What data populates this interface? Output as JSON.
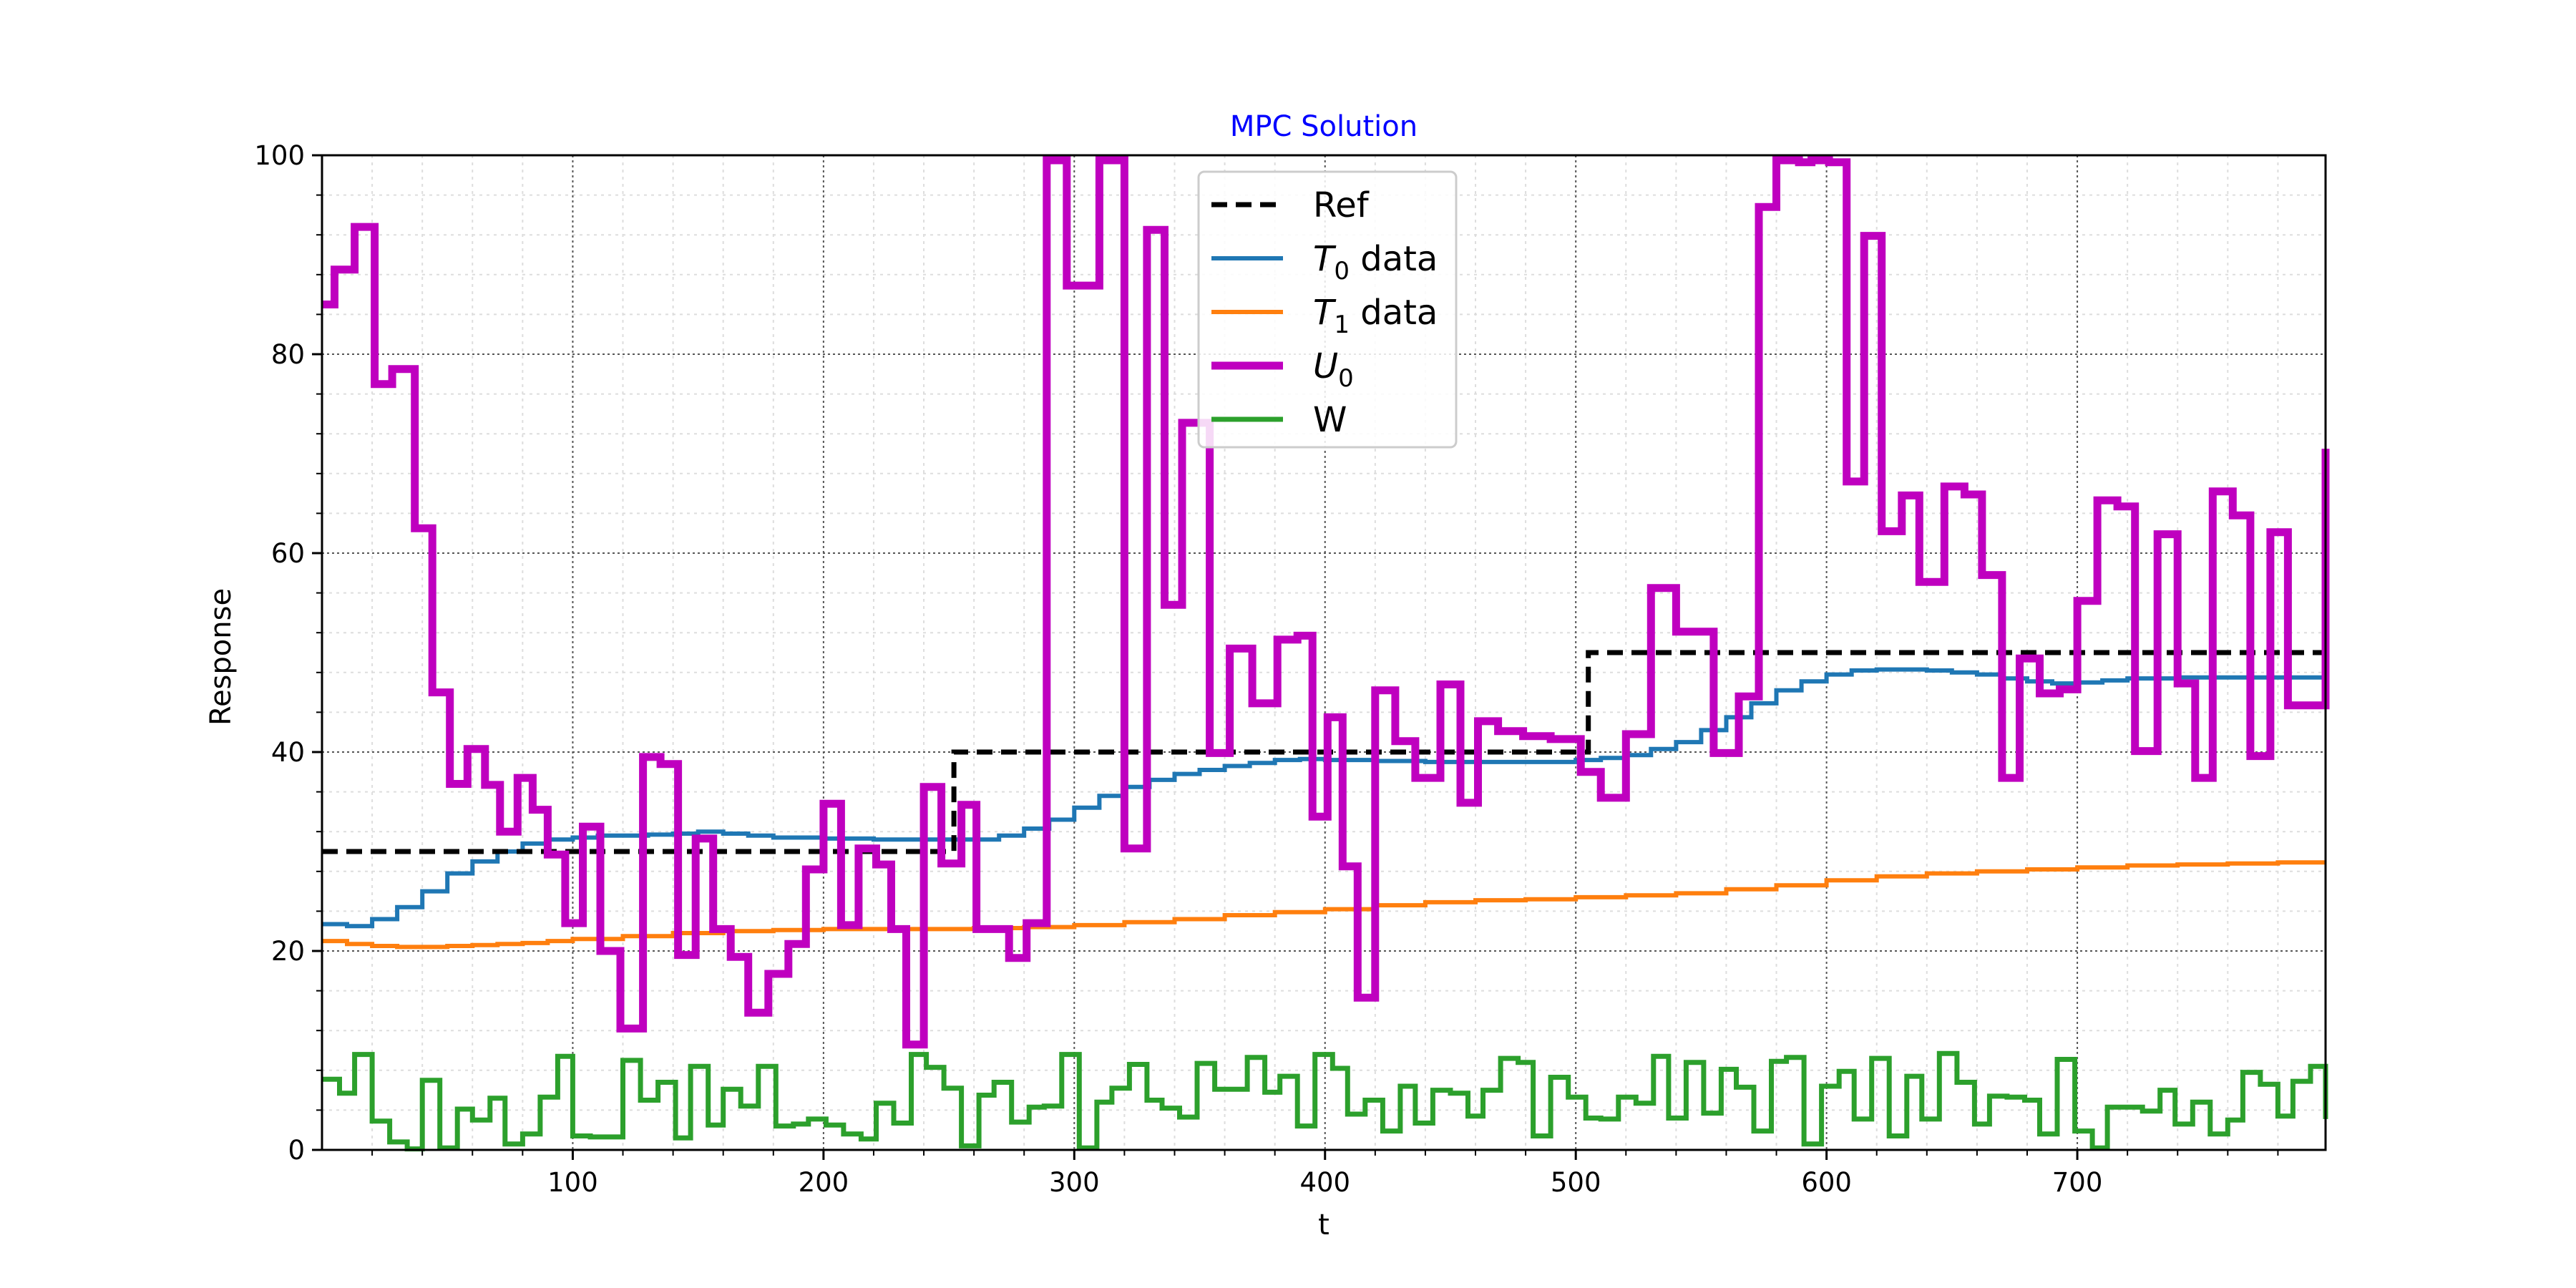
{
  "chart_data": {
    "type": "line",
    "title": "MPC Solution",
    "xlabel": "t",
    "ylabel": "Response",
    "xlim": [
      0,
      799
    ],
    "ylim": [
      0,
      100
    ],
    "xticks": [
      100,
      200,
      300,
      400,
      500,
      600,
      700
    ],
    "yticks": [
      0,
      20,
      40,
      60,
      80,
      100
    ],
    "grid": true,
    "minor_grid": true,
    "legend_position": "top-center",
    "legend": [
      {
        "key": "ref",
        "main": "Ref",
        "sub": ""
      },
      {
        "key": "t0",
        "main": "T",
        "sub": "0",
        "suffix": " data"
      },
      {
        "key": "t1",
        "main": "T",
        "sub": "1",
        "suffix": " data"
      },
      {
        "key": "u0",
        "main": "U",
        "sub": "0",
        "suffix": ""
      },
      {
        "key": "w",
        "main": "W",
        "sub": "",
        "suffix": ""
      }
    ],
    "series": [
      {
        "key": "ref",
        "name": "Ref",
        "color": "#000000",
        "dashed": true,
        "step": true,
        "x": [
          0,
          252,
          252,
          505,
          505,
          799
        ],
        "y": [
          30,
          30,
          40,
          40,
          50,
          50
        ]
      },
      {
        "key": "t0",
        "name": "T0 data",
        "color": "#1f77b4",
        "dashed": false,
        "step": true,
        "x": [
          0,
          10,
          20,
          30,
          40,
          50,
          60,
          70,
          80,
          90,
          100,
          110,
          120,
          130,
          140,
          150,
          160,
          170,
          180,
          190,
          200,
          210,
          220,
          230,
          240,
          250,
          260,
          270,
          280,
          290,
          300,
          310,
          320,
          330,
          340,
          350,
          360,
          370,
          380,
          390,
          400,
          420,
          440,
          460,
          480,
          500,
          510,
          520,
          530,
          540,
          550,
          560,
          570,
          580,
          590,
          600,
          610,
          620,
          630,
          640,
          650,
          660,
          670,
          680,
          690,
          700,
          710,
          720,
          740,
          760,
          780,
          799
        ],
        "y": [
          22.7,
          22.5,
          23.2,
          24.4,
          26.0,
          27.8,
          29.0,
          30.0,
          30.8,
          31.2,
          31.4,
          31.6,
          31.6,
          31.7,
          31.8,
          32.0,
          31.8,
          31.6,
          31.4,
          31.4,
          31.3,
          31.3,
          31.2,
          31.2,
          31.2,
          31.2,
          31.2,
          31.6,
          32.3,
          33.2,
          34.4,
          35.6,
          36.5,
          37.2,
          37.8,
          38.2,
          38.6,
          38.9,
          39.2,
          39.3,
          39.2,
          39.1,
          39.0,
          39.0,
          39.0,
          39.2,
          39.4,
          39.7,
          40.3,
          41.0,
          42.2,
          43.5,
          44.9,
          46.2,
          47.1,
          47.8,
          48.2,
          48.3,
          48.3,
          48.2,
          48.0,
          47.8,
          47.4,
          47.1,
          46.9,
          47.0,
          47.2,
          47.4,
          47.5,
          47.5,
          47.5,
          47.5
        ]
      },
      {
        "key": "t1",
        "name": "T1 data",
        "color": "#ff7f0e",
        "dashed": false,
        "step": true,
        "x": [
          0,
          10,
          20,
          30,
          40,
          50,
          60,
          70,
          80,
          90,
          100,
          120,
          140,
          160,
          180,
          200,
          220,
          240,
          260,
          280,
          300,
          320,
          340,
          360,
          380,
          400,
          420,
          440,
          460,
          480,
          500,
          520,
          540,
          560,
          580,
          600,
          620,
          640,
          660,
          680,
          700,
          720,
          740,
          760,
          780,
          799
        ],
        "y": [
          21.0,
          20.7,
          20.5,
          20.4,
          20.4,
          20.5,
          20.6,
          20.7,
          20.8,
          21.0,
          21.2,
          21.5,
          21.8,
          22.0,
          22.1,
          22.2,
          22.2,
          22.2,
          22.3,
          22.4,
          22.6,
          22.9,
          23.2,
          23.6,
          23.9,
          24.2,
          24.6,
          24.9,
          25.1,
          25.2,
          25.4,
          25.6,
          25.8,
          26.2,
          26.6,
          27.1,
          27.5,
          27.8,
          28.0,
          28.2,
          28.4,
          28.6,
          28.7,
          28.8,
          28.9,
          28.9
        ]
      },
      {
        "key": "u0",
        "name": "U0",
        "color": "#bf00bf",
        "dashed": false,
        "step": true,
        "x": [
          0,
          5,
          13,
          21,
          28,
          37,
          44,
          51,
          58,
          65,
          71,
          78,
          84,
          90,
          97,
          104,
          111,
          119,
          128,
          135,
          142,
          149,
          156,
          163,
          170,
          178,
          186,
          193,
          200,
          207,
          214,
          221,
          227,
          233,
          240,
          247,
          255,
          261,
          268,
          274,
          281,
          289,
          297,
          310,
          320,
          329,
          336,
          343,
          354,
          362,
          371,
          381,
          389,
          395,
          401,
          407,
          413,
          420,
          428,
          436,
          446,
          454,
          461,
          469,
          479,
          490,
          502,
          510,
          520,
          530,
          540,
          555,
          565,
          573,
          580,
          589,
          594,
          601,
          608,
          615,
          622,
          630,
          637,
          647,
          655,
          662,
          670,
          677,
          685,
          693,
          700,
          708,
          716,
          723,
          732,
          740,
          747,
          754,
          762,
          769,
          777,
          784,
          790,
          799
        ],
        "y": [
          85,
          88.5,
          92.8,
          77,
          78.5,
          62.5,
          46,
          36.8,
          40.3,
          36.7,
          32,
          37.4,
          34.2,
          29.7,
          22.8,
          32.5,
          20,
          12.2,
          39.5,
          38.8,
          19.6,
          31.3,
          22.2,
          19.4,
          13.8,
          17.7,
          20.7,
          28.2,
          34.8,
          22.6,
          30.3,
          28.7,
          22.2,
          10.6,
          36.5,
          28.8,
          34.7,
          22.2,
          22.2,
          19.3,
          22.8,
          99.5,
          86.9,
          99.5,
          30.3,
          92.5,
          54.8,
          73.1,
          39.9,
          50.4,
          44.9,
          51.3,
          51.7,
          33.5,
          43.5,
          28.5,
          15.3,
          46.2,
          41.1,
          37.4,
          46.8,
          34.9,
          43.1,
          42.1,
          41.6,
          41.3,
          38,
          35.4,
          41.8,
          56.5,
          52.1,
          39.9,
          45.6,
          94.8,
          99.5,
          99.3,
          99.5,
          99.3,
          67.2,
          91.9,
          62.2,
          65.8,
          57.1,
          66.7,
          65.9,
          57.8,
          37.4,
          49.4,
          45.9,
          46.3,
          55.2,
          65.3,
          64.7,
          40.1,
          61.9,
          46.9,
          37.4,
          66.2,
          63.8,
          39.6,
          62.1,
          44.7,
          44.7,
          70.5
        ]
      },
      {
        "key": "w",
        "name": "W",
        "color": "#2ca02c",
        "dashed": false,
        "step": true,
        "x": [
          0,
          7,
          13,
          20,
          27,
          34,
          40,
          47,
          54,
          60,
          67,
          73,
          80,
          87,
          94,
          100,
          107,
          114,
          120,
          127,
          134,
          141,
          147,
          154,
          160,
          167,
          174,
          181,
          188,
          194,
          201,
          208,
          215,
          221,
          228,
          235,
          241,
          248,
          255,
          262,
          268,
          275,
          282,
          288,
          295,
          302,
          309,
          315,
          322,
          329,
          335,
          342,
          349,
          356,
          362,
          369,
          376,
          382,
          389,
          396,
          403,
          409,
          416,
          423,
          430,
          436,
          443,
          450,
          457,
          463,
          470,
          477,
          483,
          490,
          497,
          504,
          510,
          517,
          524,
          531,
          537,
          544,
          551,
          558,
          564,
          571,
          578,
          584,
          591,
          598,
          605,
          611,
          618,
          625,
          632,
          638,
          645,
          652,
          659,
          665,
          672,
          679,
          685,
          692,
          699,
          706,
          712,
          719,
          726,
          733,
          739,
          746,
          753,
          760,
          766,
          773,
          780,
          786,
          793,
          799
        ],
        "y": [
          7.1,
          5.7,
          9.6,
          2.9,
          0.8,
          0.1,
          7.0,
          0.2,
          4.1,
          3.0,
          5.2,
          0.6,
          1.6,
          5.3,
          9.4,
          1.4,
          1.3,
          1.3,
          9.0,
          5.0,
          6.8,
          1.2,
          8.4,
          2.5,
          6.1,
          4.4,
          8.4,
          2.4,
          2.6,
          3.1,
          2.5,
          1.6,
          1.1,
          4.7,
          2.7,
          9.6,
          8.3,
          6.2,
          0.4,
          5.5,
          6.8,
          2.8,
          4.3,
          4.4,
          9.6,
          0.2,
          4.8,
          6.2,
          8.6,
          5.0,
          4.2,
          3.3,
          8.7,
          6.1,
          6.1,
          9.3,
          5.8,
          7.4,
          2.4,
          9.6,
          8.2,
          3.6,
          5.0,
          1.9,
          6.4,
          2.7,
          6.0,
          5.7,
          3.4,
          6.0,
          9.2,
          8.8,
          1.4,
          7.3,
          5.3,
          3.2,
          3.1,
          5.3,
          4.7,
          9.4,
          3.2,
          8.8,
          3.7,
          8.1,
          6.3,
          1.9,
          8.9,
          9.3,
          0.6,
          6.4,
          7.9,
          3.1,
          9.2,
          1.4,
          7.4,
          3.1,
          9.7,
          6.8,
          2.6,
          5.4,
          5.3,
          5.0,
          1.6,
          9.1,
          1.9,
          0.2,
          4.3,
          4.3,
          3.9,
          6.0,
          2.6,
          4.8,
          1.6,
          3.0,
          7.8,
          6.6,
          3.4,
          6.9,
          8.4,
          3.1
        ]
      }
    ]
  }
}
